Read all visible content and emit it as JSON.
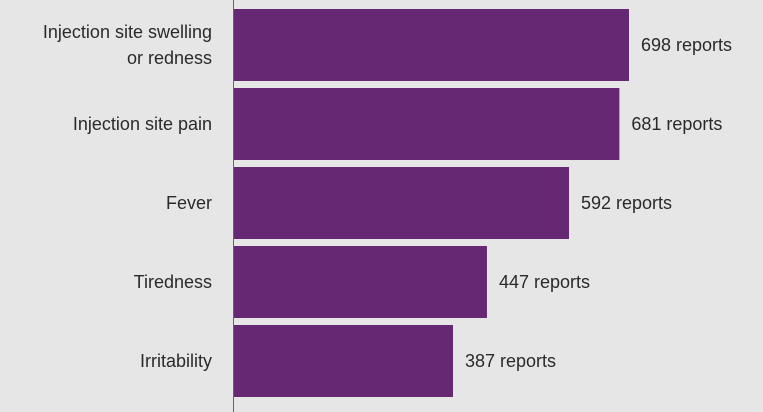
{
  "chart_data": {
    "type": "bar",
    "orientation": "horizontal",
    "categories": [
      [
        "Injection site swelling",
        "or redness"
      ],
      [
        "Injection site pain"
      ],
      [
        "Fever"
      ],
      [
        "Tiredness"
      ],
      [
        "Irritability"
      ]
    ],
    "values": [
      698,
      681,
      592,
      447,
      387
    ],
    "value_labels": [
      "698 reports",
      "681 reports",
      "592 reports",
      "447 reports",
      "387 reports"
    ],
    "title": "",
    "xlabel": "",
    "ylabel": "",
    "grid": false,
    "legend": "none",
    "colors": {
      "bar": "#662873",
      "background": "#e6e6e6",
      "axis": "#666666",
      "text": "#2a2a2a"
    }
  }
}
